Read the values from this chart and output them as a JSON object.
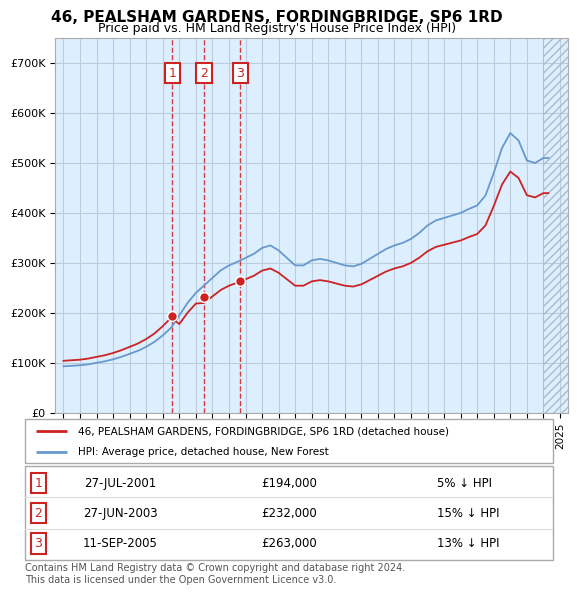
{
  "title": "46, PEALSHAM GARDENS, FORDINGBRIDGE, SP6 1RD",
  "subtitle": "Price paid vs. HM Land Registry's House Price Index (HPI)",
  "legend_line1": "46, PEALSHAM GARDENS, FORDINGBRIDGE, SP6 1RD (detached house)",
  "legend_line2": "HPI: Average price, detached house, New Forest",
  "sales": [
    {
      "label": "1",
      "date": "27-JUL-2001",
      "price": 194000,
      "pct": "5% ↓ HPI",
      "x": 2001.57
    },
    {
      "label": "2",
      "date": "27-JUN-2003",
      "price": 232000,
      "pct": "15% ↓ HPI",
      "x": 2003.49
    },
    {
      "label": "3",
      "date": "11-SEP-2005",
      "price": 263000,
      "pct": "13% ↓ HPI",
      "x": 2005.69
    }
  ],
  "footer_line1": "Contains HM Land Registry data © Crown copyright and database right 2024.",
  "footer_line2": "This data is licensed under the Open Government Licence v3.0.",
  "hpi_color": "#6699cc",
  "sale_color": "#cc2222",
  "bg_color": "#ddeeff",
  "plot_bg": "#ffffff",
  "grid_color": "#bbccdd",
  "ylim": [
    0,
    750000
  ],
  "xlim_start": 1994.5,
  "xlim_end": 2025.5,
  "yticks": [
    0,
    100000,
    200000,
    300000,
    400000,
    500000,
    600000,
    700000
  ]
}
